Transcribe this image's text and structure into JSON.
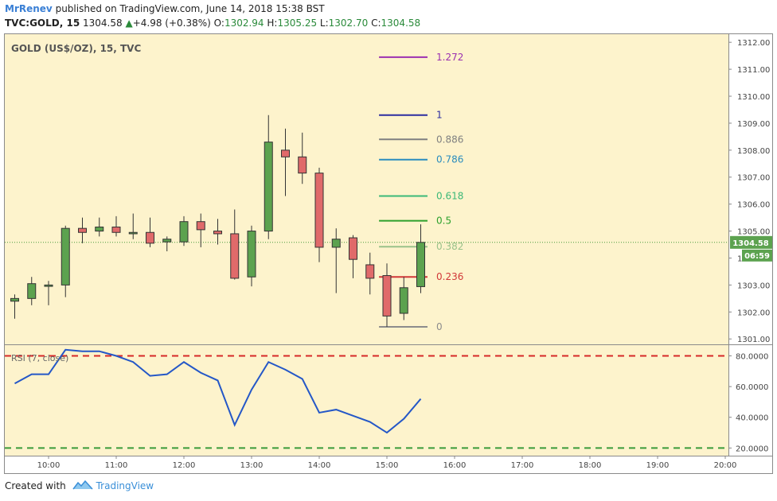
{
  "header": {
    "author": "MrRenev",
    "published": "published on TradingView.com, June 14, 2018 15:38 BST",
    "symbol": "TVC:GOLD, 15",
    "last": "1304.58",
    "change": "+4.98 (+0.38%)",
    "open_label": "O:",
    "open": "1302.94",
    "high_label": "H:",
    "high": "1305.25",
    "low_label": "L:",
    "low": "1302.70",
    "close_label": "C:",
    "close": "1304.58"
  },
  "footer": {
    "created_with": "Created with",
    "brand": "TradingView"
  },
  "colors": {
    "background": "#fdf3cc",
    "bull": "#5ca24f",
    "bear": "#e06a6a",
    "rsi_line": "#2457c7",
    "rsi_bounds": [
      "#d62828",
      "#3a9a3a"
    ]
  },
  "chart_data": [
    {
      "type": "candlestick",
      "title": "GOLD (US$/OZ), 15, TVC",
      "ylim": [
        1300.8,
        1312.3
      ],
      "yticks": [
        "1301.00",
        "1302.00",
        "1303.00",
        "1304.00",
        "1305.00",
        "1306.00",
        "1307.00",
        "1308.00",
        "1309.00",
        "1310.00",
        "1311.00",
        "1312.00"
      ],
      "xticks": [
        {
          "t": 600,
          "label": "10:00"
        },
        {
          "t": 660,
          "label": "11:00"
        },
        {
          "t": 720,
          "label": "12:00"
        },
        {
          "t": 780,
          "label": "13:00"
        },
        {
          "t": 840,
          "label": "14:00"
        },
        {
          "t": 900,
          "label": "15:00"
        },
        {
          "t": 960,
          "label": "16:00"
        },
        {
          "t": 1020,
          "label": "17:00"
        },
        {
          "t": 1080,
          "label": "18:00"
        },
        {
          "t": 1140,
          "label": "19:00"
        },
        {
          "t": 1200,
          "label": "20:00"
        }
      ],
      "candles": [
        {
          "t": 570,
          "o": 1302.4,
          "h": 1302.65,
          "l": 1301.75,
          "c": 1302.5
        },
        {
          "t": 585,
          "o": 1302.5,
          "h": 1303.3,
          "l": 1302.25,
          "c": 1303.05
        },
        {
          "t": 600,
          "o": 1302.95,
          "h": 1303.15,
          "l": 1302.25,
          "c": 1303.0
        },
        {
          "t": 615,
          "o": 1303.0,
          "h": 1305.2,
          "l": 1302.55,
          "c": 1305.1
        },
        {
          "t": 630,
          "o": 1305.1,
          "h": 1305.5,
          "l": 1304.55,
          "c": 1304.95
        },
        {
          "t": 645,
          "o": 1305.0,
          "h": 1305.5,
          "l": 1304.8,
          "c": 1305.15
        },
        {
          "t": 660,
          "o": 1305.15,
          "h": 1305.55,
          "l": 1304.8,
          "c": 1304.95
        },
        {
          "t": 675,
          "o": 1304.9,
          "h": 1305.65,
          "l": 1304.7,
          "c": 1304.95
        },
        {
          "t": 690,
          "o": 1304.95,
          "h": 1305.5,
          "l": 1304.4,
          "c": 1304.55
        },
        {
          "t": 705,
          "o": 1304.6,
          "h": 1304.8,
          "l": 1304.25,
          "c": 1304.7
        },
        {
          "t": 720,
          "o": 1304.6,
          "h": 1305.55,
          "l": 1304.45,
          "c": 1305.35
        },
        {
          "t": 735,
          "o": 1305.35,
          "h": 1305.65,
          "l": 1304.4,
          "c": 1305.05
        },
        {
          "t": 750,
          "o": 1305.0,
          "h": 1305.45,
          "l": 1304.5,
          "c": 1304.9
        },
        {
          "t": 765,
          "o": 1304.9,
          "h": 1305.8,
          "l": 1303.2,
          "c": 1303.25
        },
        {
          "t": 780,
          "o": 1303.3,
          "h": 1305.2,
          "l": 1302.95,
          "c": 1305.0
        },
        {
          "t": 795,
          "o": 1305.0,
          "h": 1309.3,
          "l": 1304.7,
          "c": 1308.3
        },
        {
          "t": 810,
          "o": 1308.0,
          "h": 1308.8,
          "l": 1306.3,
          "c": 1307.75
        },
        {
          "t": 825,
          "o": 1307.75,
          "h": 1308.65,
          "l": 1306.75,
          "c": 1307.15
        },
        {
          "t": 840,
          "o": 1307.15,
          "h": 1307.35,
          "l": 1303.85,
          "c": 1304.4
        },
        {
          "t": 855,
          "o": 1304.4,
          "h": 1305.1,
          "l": 1302.7,
          "c": 1304.7
        },
        {
          "t": 870,
          "o": 1304.75,
          "h": 1304.85,
          "l": 1303.25,
          "c": 1303.95
        },
        {
          "t": 885,
          "o": 1303.75,
          "h": 1304.2,
          "l": 1302.65,
          "c": 1303.25
        },
        {
          "t": 900,
          "o": 1303.35,
          "h": 1303.8,
          "l": 1301.45,
          "c": 1301.85
        },
        {
          "t": 915,
          "o": 1301.95,
          "h": 1303.3,
          "l": 1301.7,
          "c": 1302.9
        },
        {
          "t": 930,
          "o": 1302.94,
          "h": 1305.25,
          "l": 1302.7,
          "c": 1304.58
        }
      ],
      "last_price": "1304.58",
      "countdown": "06:59",
      "fib": {
        "t_start": 893,
        "t_end": 936,
        "levels": [
          {
            "label": "0",
            "price": 1301.45,
            "color": "#8c8c8c"
          },
          {
            "label": "0.236",
            "price": 1303.3,
            "color": "#d13838"
          },
          {
            "label": "0.382",
            "price": 1304.42,
            "color": "#9ac28a"
          },
          {
            "label": "0.5",
            "price": 1305.38,
            "color": "#2ca02c"
          },
          {
            "label": "0.618",
            "price": 1306.3,
            "color": "#3cb878"
          },
          {
            "label": "0.786",
            "price": 1307.65,
            "color": "#2a8cbe"
          },
          {
            "label": "0.886",
            "price": 1308.4,
            "color": "#808080"
          },
          {
            "label": "1",
            "price": 1309.3,
            "color": "#2c2ca0"
          },
          {
            "label": "1.272",
            "price": 1311.45,
            "color": "#9b30b0"
          }
        ]
      }
    },
    {
      "type": "line",
      "title": "RSI (7, close)",
      "ylim": [
        15,
        87
      ],
      "yticks": [
        "20.0000",
        "40.0000",
        "60.0000",
        "80.0000"
      ],
      "bounds": [
        80,
        20
      ],
      "x": [
        570,
        585,
        600,
        615,
        630,
        645,
        660,
        675,
        690,
        705,
        720,
        735,
        750,
        765,
        780,
        795,
        810,
        825,
        840,
        855,
        870,
        885,
        900,
        915,
        930
      ],
      "y": [
        62,
        68,
        68,
        84,
        83,
        83,
        80,
        76,
        67,
        68,
        76,
        69,
        64,
        35,
        58,
        76,
        71,
        65,
        43,
        45,
        41,
        37,
        30,
        39,
        52
      ]
    }
  ]
}
